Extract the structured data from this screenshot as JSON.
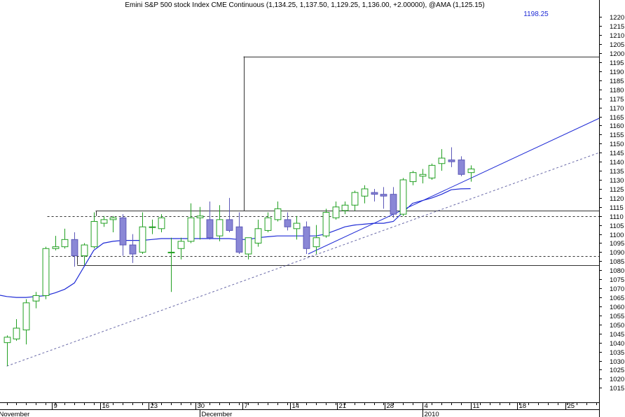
{
  "chart_data": {
    "type": "candlestick",
    "title": "Emini S&P 500 stock Index CME Continuous (1,134.25, 1,137.50, 1,129.25, 1,136.00, +2.00000), @AMA (1,125.15)",
    "annotation": "1198.25",
    "colors": {
      "up": "#22a022",
      "down_fill": "#8a87d6",
      "down_stroke": "#5c58b8",
      "ama": "#1f2bd6",
      "trendline": "#1f2bd6",
      "levels": "#333333",
      "axis": "#000000"
    },
    "y_axis": {
      "range": [
        1007,
        1224
      ],
      "ticks": [
        1015,
        1020,
        1025,
        1030,
        1035,
        1040,
        1045,
        1050,
        1055,
        1060,
        1065,
        1070,
        1075,
        1080,
        1085,
        1090,
        1095,
        1100,
        1105,
        1110,
        1115,
        1120,
        1125,
        1130,
        1135,
        1140,
        1145,
        1150,
        1155,
        1160,
        1165,
        1170,
        1175,
        1180,
        1185,
        1190,
        1195,
        1200,
        1205,
        1210,
        1215,
        1220
      ]
    },
    "x_axis": {
      "bar_range": [
        -0.7,
        61.3
      ],
      "ticks": [
        {
          "bar": 4.7,
          "label": "9",
          "major": false
        },
        {
          "bar": 9.7,
          "label": "16",
          "major": false
        },
        {
          "bar": 14.7,
          "label": "23",
          "major": false
        },
        {
          "bar": 19.5,
          "label": "30",
          "major": false
        },
        {
          "bar": 24.4,
          "label": "7",
          "major": false
        },
        {
          "bar": 29.3,
          "label": "14",
          "major": false
        },
        {
          "bar": 34.2,
          "label": "21",
          "major": false
        },
        {
          "bar": 39.1,
          "label": "28",
          "major": false
        },
        {
          "bar": 43.0,
          "label": "4",
          "major": false
        },
        {
          "bar": 48.0,
          "label": "11",
          "major": false
        },
        {
          "bar": 52.8,
          "label": "18",
          "major": false
        },
        {
          "bar": 57.8,
          "label": "25",
          "major": false
        }
      ],
      "months": [
        {
          "bar": -1.0,
          "label": "November"
        },
        {
          "bar": 20.0,
          "label": "December"
        },
        {
          "bar": 43.0,
          "label": "2010"
        }
      ]
    },
    "candles": [
      {
        "o": 1040,
        "h": 1044,
        "l": 1027,
        "c": 1043
      },
      {
        "o": 1042,
        "h": 1053,
        "l": 1041,
        "c": 1048
      },
      {
        "o": 1047,
        "h": 1064,
        "l": 1039,
        "c": 1062
      },
      {
        "o": 1063,
        "h": 1068,
        "l": 1059,
        "c": 1066
      },
      {
        "o": 1066,
        "h": 1093,
        "l": 1064,
        "c": 1092
      },
      {
        "o": 1092,
        "h": 1099,
        "l": 1091,
        "c": 1093
      },
      {
        "o": 1093,
        "h": 1103,
        "l": 1092,
        "c": 1097
      },
      {
        "o": 1097,
        "h": 1101,
        "l": 1082,
        "c": 1088
      },
      {
        "o": 1088,
        "h": 1095,
        "l": 1083,
        "c": 1094
      },
      {
        "o": 1093,
        "h": 1112,
        "l": 1092,
        "c": 1107
      },
      {
        "o": 1106,
        "h": 1110,
        "l": 1104,
        "c": 1108
      },
      {
        "o": 1108,
        "h": 1110,
        "l": 1101,
        "c": 1109
      },
      {
        "o": 1109,
        "h": 1111,
        "l": 1088,
        "c": 1094
      },
      {
        "o": 1094,
        "h": 1100,
        "l": 1084,
        "c": 1089
      },
      {
        "o": 1090,
        "h": 1112,
        "l": 1089,
        "c": 1104
      },
      {
        "o": 1104,
        "h": 1108,
        "l": 1100,
        "c": 1104
      },
      {
        "o": 1103,
        "h": 1111,
        "l": 1101,
        "c": 1109
      },
      {
        "o": 1090,
        "h": 1098,
        "l": 1068,
        "c": 1090
      },
      {
        "o": 1092,
        "h": 1098,
        "l": 1086,
        "c": 1096
      },
      {
        "o": 1096,
        "h": 1117,
        "l": 1095,
        "c": 1109
      },
      {
        "o": 1109,
        "h": 1115,
        "l": 1097,
        "c": 1110
      },
      {
        "o": 1108,
        "h": 1118,
        "l": 1097,
        "c": 1098
      },
      {
        "o": 1099,
        "h": 1116,
        "l": 1096,
        "c": 1108
      },
      {
        "o": 1108,
        "h": 1120,
        "l": 1101,
        "c": 1102
      },
      {
        "o": 1104,
        "h": 1112,
        "l": 1089,
        "c": 1090
      },
      {
        "o": 1089,
        "h": 1096,
        "l": 1086,
        "c": 1098
      },
      {
        "o": 1095,
        "h": 1108,
        "l": 1093,
        "c": 1103
      },
      {
        "o": 1102,
        "h": 1112,
        "l": 1101,
        "c": 1109
      },
      {
        "o": 1108,
        "h": 1118,
        "l": 1107,
        "c": 1114
      },
      {
        "o": 1108,
        "h": 1112,
        "l": 1102,
        "c": 1104
      },
      {
        "o": 1103,
        "h": 1110,
        "l": 1097,
        "c": 1106
      },
      {
        "o": 1104,
        "h": 1107,
        "l": 1089,
        "c": 1092
      },
      {
        "o": 1093,
        "h": 1105,
        "l": 1089,
        "c": 1098
      },
      {
        "o": 1099,
        "h": 1114,
        "l": 1098,
        "c": 1112
      },
      {
        "o": 1109,
        "h": 1118,
        "l": 1108,
        "c": 1115
      },
      {
        "o": 1113,
        "h": 1118,
        "l": 1111,
        "c": 1116
      },
      {
        "o": 1116,
        "h": 1124,
        "l": 1113,
        "c": 1123
      },
      {
        "o": 1121,
        "h": 1127,
        "l": 1117,
        "c": 1125
      },
      {
        "o": 1123,
        "h": 1125,
        "l": 1118,
        "c": 1122
      },
      {
        "o": 1122,
        "h": 1126,
        "l": 1114,
        "c": 1121
      },
      {
        "o": 1122,
        "h": 1126,
        "l": 1109,
        "c": 1111
      },
      {
        "o": 1111,
        "h": 1131,
        "l": 1110,
        "c": 1130
      },
      {
        "o": 1129,
        "h": 1135,
        "l": 1127,
        "c": 1134
      },
      {
        "o": 1132,
        "h": 1136,
        "l": 1128,
        "c": 1133
      },
      {
        "o": 1131,
        "h": 1139,
        "l": 1130,
        "c": 1138
      },
      {
        "o": 1139,
        "h": 1147,
        "l": 1135,
        "c": 1142
      },
      {
        "o": 1141,
        "h": 1148,
        "l": 1137,
        "c": 1140
      },
      {
        "o": 1141,
        "h": 1143,
        "l": 1132,
        "c": 1133
      },
      {
        "o": 1134,
        "h": 1138,
        "l": 1129,
        "c": 1136
      }
    ],
    "ama": [
      {
        "bar": -0.7,
        "v": 1066.2
      },
      {
        "bar": 0,
        "v": 1065.5
      },
      {
        "bar": 1,
        "v": 1065
      },
      {
        "bar": 2,
        "v": 1065
      },
      {
        "bar": 3,
        "v": 1065.5
      },
      {
        "bar": 4,
        "v": 1066
      },
      {
        "bar": 5,
        "v": 1067.5
      },
      {
        "bar": 6,
        "v": 1069.5
      },
      {
        "bar": 7,
        "v": 1073
      },
      {
        "bar": 8,
        "v": 1082
      },
      {
        "bar": 9,
        "v": 1091
      },
      {
        "bar": 10,
        "v": 1095
      },
      {
        "bar": 11,
        "v": 1096
      },
      {
        "bar": 12,
        "v": 1096.5
      },
      {
        "bar": 13,
        "v": 1096.5
      },
      {
        "bar": 14,
        "v": 1096.5
      },
      {
        "bar": 15,
        "v": 1097
      },
      {
        "bar": 16,
        "v": 1097.5
      },
      {
        "bar": 17,
        "v": 1097.5
      },
      {
        "bar": 18,
        "v": 1097.5
      },
      {
        "bar": 19,
        "v": 1097.5
      },
      {
        "bar": 20,
        "v": 1097.5
      },
      {
        "bar": 21,
        "v": 1097.5
      },
      {
        "bar": 22,
        "v": 1097.5
      },
      {
        "bar": 23,
        "v": 1097.5
      },
      {
        "bar": 24,
        "v": 1097
      },
      {
        "bar": 25,
        "v": 1097
      },
      {
        "bar": 26,
        "v": 1098
      },
      {
        "bar": 27,
        "v": 1098.5
      },
      {
        "bar": 28,
        "v": 1099
      },
      {
        "bar": 29,
        "v": 1099
      },
      {
        "bar": 30,
        "v": 1099
      },
      {
        "bar": 31,
        "v": 1099
      },
      {
        "bar": 32,
        "v": 1099
      },
      {
        "bar": 33,
        "v": 1100
      },
      {
        "bar": 34,
        "v": 1102
      },
      {
        "bar": 35,
        "v": 1104
      },
      {
        "bar": 36,
        "v": 1105
      },
      {
        "bar": 37,
        "v": 1105.5
      },
      {
        "bar": 38,
        "v": 1106
      },
      {
        "bar": 39,
        "v": 1106
      },
      {
        "bar": 40,
        "v": 1107
      },
      {
        "bar": 41,
        "v": 1112
      },
      {
        "bar": 42,
        "v": 1117
      },
      {
        "bar": 43,
        "v": 1118.5
      },
      {
        "bar": 44,
        "v": 1120
      },
      {
        "bar": 45,
        "v": 1122
      },
      {
        "bar": 46,
        "v": 1124.5
      },
      {
        "bar": 47,
        "v": 1125
      },
      {
        "bar": 48,
        "v": 1125.15
      }
    ],
    "trendlines": [
      {
        "name": "solid-up",
        "style": "solid",
        "from": {
          "bar": 31.2,
          "v": 1089
        },
        "to": {
          "bar": 61.3,
          "v": 1164
        }
      },
      {
        "name": "dashed-up",
        "style": "dashed",
        "from": {
          "bar": 0,
          "v": 1027
        },
        "to": {
          "bar": 61.3,
          "v": 1145
        }
      }
    ],
    "levels": [
      {
        "v": 1198.25,
        "from_bar": 24.5,
        "to_bar": 61.3,
        "style": "solid"
      },
      {
        "v": 1113,
        "from_bar": 9.2,
        "to_bar": 61.3,
        "style": "solid"
      },
      {
        "v": 1110,
        "from_bar": 4.2,
        "to_bar": 61.3,
        "style": "dashed"
      },
      {
        "v": 1088,
        "from_bar": 4.2,
        "to_bar": 61.3,
        "style": "dashed"
      },
      {
        "v": 1083,
        "from_bar": 7.3,
        "to_bar": 61.3,
        "style": "solid"
      }
    ],
    "level_markers": [
      {
        "bar": 24.5,
        "v_from": 1113,
        "v_to": 1198.25
      },
      {
        "bar": 9.2,
        "v_from": 1113,
        "v_to": 1110
      },
      {
        "bar": 7.3,
        "v_from": 1083,
        "v_to": 1088
      }
    ]
  }
}
